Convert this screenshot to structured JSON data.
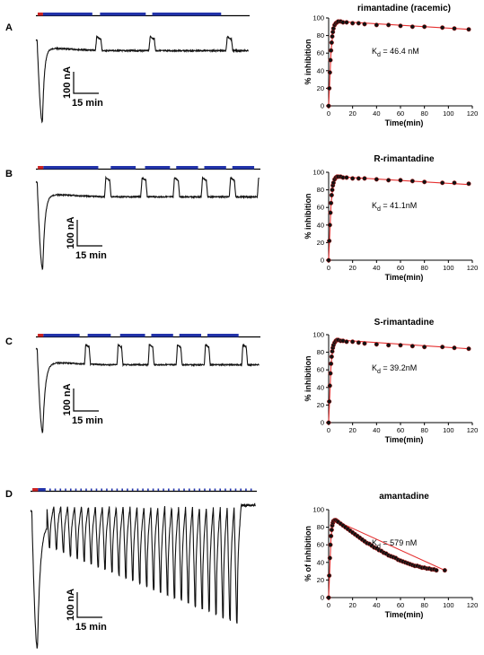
{
  "panels": [
    {
      "letter": "A",
      "scale_current": "100 nA",
      "scale_time": "15 min",
      "bars": [
        {
          "color": "#cc2222",
          "from": 0.3,
          "to": 1.2
        },
        {
          "color": "#2233aa",
          "from": 1.2,
          "to": 9.5
        },
        {
          "color": "#2233aa",
          "from": 10.8,
          "to": 18.5
        },
        {
          "color": "#2233aa",
          "from": 19.6,
          "to": 31.2
        }
      ],
      "trace": {
        "baseline": 0.14,
        "peak": 1.0,
        "drop_start": 0.2,
        "drop_end": 1.1,
        "recover_tau": 2.5,
        "settle": 0.22,
        "drift": 0.03,
        "washouts": [
          10.0,
          19.0,
          32.0
        ],
        "washout_level": 0.1,
        "washout_dur": 0.9
      },
      "kinetics": {
        "peak_time": 8,
        "k_on": 0.55,
        "peak": 96,
        "end_time": 117,
        "end_value": 87
      }
    },
    {
      "letter": "B",
      "scale_current": "100 nA",
      "scale_time": "15 min",
      "bars": [
        {
          "color": "#cc2222",
          "from": 0.3,
          "to": 1.2
        },
        {
          "color": "#2233aa",
          "from": 1.2,
          "to": 10.0
        },
        {
          "color": "#2233aa",
          "from": 12.0,
          "to": 16.0
        },
        {
          "color": "#2233aa",
          "from": 17.5,
          "to": 21.5
        },
        {
          "color": "#2233aa",
          "from": 22.5,
          "to": 26.0
        },
        {
          "color": "#2233aa",
          "from": 27.0,
          "to": 30.5
        },
        {
          "color": "#2233aa",
          "from": 31.5,
          "to": 35.0
        }
      ],
      "trace": {
        "baseline": 0.05,
        "peak": 1.0,
        "drop_start": 0.2,
        "drop_end": 1.1,
        "recover_tau": 2.3,
        "settle": 0.18,
        "drift": 0.03,
        "washouts": [
          11.0,
          16.8,
          22.0,
          26.5,
          31.0,
          35.5
        ],
        "washout_level": 0.0,
        "washout_dur": 0.8
      },
      "kinetics": {
        "peak_time": 7,
        "k_on": 0.6,
        "peak": 95,
        "end_time": 117,
        "end_value": 87
      }
    },
    {
      "letter": "C",
      "scale_current": "100 nA",
      "scale_time": "15 min",
      "bars": [
        {
          "color": "#cc2222",
          "from": 0.3,
          "to": 1.2
        },
        {
          "color": "#2233aa",
          "from": 1.2,
          "to": 7.0
        },
        {
          "color": "#2233aa",
          "from": 8.3,
          "to": 12.0
        },
        {
          "color": "#2233aa",
          "from": 13.5,
          "to": 17.5
        },
        {
          "color": "#2233aa",
          "from": 18.5,
          "to": 22.0
        },
        {
          "color": "#2233aa",
          "from": 23.0,
          "to": 26.5
        },
        {
          "color": "#2233aa",
          "from": 27.5,
          "to": 32.5
        }
      ],
      "trace": {
        "baseline": 0.05,
        "peak": 1.0,
        "drop_start": 0.2,
        "drop_end": 1.1,
        "recover_tau": 2.0,
        "settle": 0.2,
        "drift": 0.03,
        "washouts": [
          7.8,
          13.0,
          18.0,
          22.5,
          27.0,
          33.0
        ],
        "washout_level": 0.0,
        "washout_dur": 0.7
      },
      "kinetics": {
        "peak_time": 6,
        "k_on": 0.65,
        "peak": 94,
        "end_time": 117,
        "end_value": 84
      }
    },
    {
      "letter": "D",
      "scale_current": "100 nA",
      "scale_time": "15 min",
      "bars": [
        {
          "color": "#cc2222",
          "from": 0.3,
          "to": 1.2
        },
        {
          "color": "#2233aa",
          "from": 1.2,
          "to": 2.4
        }
      ],
      "trace": {
        "baseline": 0.07,
        "peak": 0.98,
        "drop_start": 0.2,
        "drop_end": 1.1,
        "recover_tau": 1.8,
        "settle": 0.15,
        "drift": 0.0,
        "washouts": [],
        "osc_count": 28,
        "osc_start": 2.6,
        "osc_end": 33.5,
        "osc_base_start": 0.3,
        "osc_base_end": 0.82,
        "washout_level": 0.02,
        "washout_dur": 0.4
      },
      "kinetics": {
        "peak_time": 5,
        "k_on": 0.7,
        "peak": 88,
        "end_time": 97,
        "end_value": 31
      }
    }
  ],
  "chart_data": [
    {
      "type": "scatter",
      "title": "rimantadine (racemic)",
      "xlabel": "Time(min)",
      "ylabel": "% inhibition",
      "annotation_main": "K",
      "annotation_sub": "d",
      "annotation_rest": " = 46.4 nM",
      "xlim": [
        0,
        120
      ],
      "ylim": [
        0,
        100
      ],
      "xticks": [
        "0",
        "20",
        "40",
        "60",
        "80",
        "100",
        "120"
      ],
      "yticks": [
        "0",
        "20",
        "40",
        "60",
        "80",
        "100"
      ],
      "x": [
        0,
        0.5,
        1,
        1.5,
        2,
        2.5,
        3,
        3.5,
        4,
        5,
        6,
        7,
        8,
        10,
        12,
        15,
        20,
        25,
        30,
        40,
        50,
        60,
        70,
        80,
        95,
        105,
        117
      ],
      "y": [
        0,
        20,
        38,
        52,
        63,
        72,
        79,
        84,
        88,
        92,
        94,
        95,
        96,
        96,
        95,
        95,
        94,
        94,
        93,
        92,
        92,
        91,
        90,
        90,
        89,
        88,
        87
      ],
      "fit": {
        "x": [
          0,
          2,
          4,
          6,
          8,
          117
        ],
        "y": [
          0,
          63,
          88,
          94,
          96,
          87
        ]
      }
    },
    {
      "type": "scatter",
      "title": "R-rimantadine",
      "xlabel": "Time(min)",
      "ylabel": "% inhibition",
      "annotation_main": "K",
      "annotation_sub": "d",
      "annotation_rest": " = 41.1nM",
      "xlim": [
        0,
        120
      ],
      "ylim": [
        0,
        100
      ],
      "xticks": [
        "0",
        "20",
        "40",
        "60",
        "80",
        "100",
        "120"
      ],
      "yticks": [
        "0",
        "20",
        "40",
        "60",
        "80",
        "100"
      ],
      "x": [
        0,
        0.5,
        1,
        1.5,
        2,
        2.5,
        3,
        3.5,
        4,
        5,
        6,
        7,
        8,
        10,
        12,
        15,
        20,
        25,
        30,
        40,
        50,
        60,
        70,
        80,
        95,
        105,
        117
      ],
      "y": [
        0,
        22,
        40,
        54,
        65,
        74,
        80,
        85,
        88,
        92,
        94,
        95,
        95,
        95,
        94,
        94,
        93,
        93,
        93,
        92,
        91,
        91,
        90,
        89,
        88,
        88,
        87
      ],
      "fit": {
        "x": [
          0,
          2,
          4,
          6,
          8,
          117
        ],
        "y": [
          0,
          65,
          88,
          94,
          95,
          86
        ]
      }
    },
    {
      "type": "scatter",
      "title": "S-rimantadine",
      "xlabel": "Time(min)",
      "ylabel": "% inhibition",
      "annotation_main": "K",
      "annotation_sub": "d",
      "annotation_rest": " = 39.2nM",
      "xlim": [
        0,
        120
      ],
      "ylim": [
        0,
        100
      ],
      "xticks": [
        "0",
        "20",
        "40",
        "60",
        "80",
        "100",
        "120"
      ],
      "yticks": [
        "0",
        "20",
        "40",
        "60",
        "80",
        "100"
      ],
      "x": [
        0,
        0.5,
        1,
        1.5,
        2,
        2.5,
        3,
        3.5,
        4,
        5,
        6,
        7,
        8,
        10,
        12,
        15,
        20,
        25,
        30,
        40,
        50,
        60,
        70,
        80,
        95,
        105,
        117
      ],
      "y": [
        0,
        24,
        42,
        56,
        67,
        75,
        81,
        85,
        88,
        91,
        93,
        94,
        94,
        93,
        93,
        92,
        92,
        91,
        90,
        89,
        88,
        88,
        87,
        86,
        86,
        85,
        84
      ],
      "fit": {
        "x": [
          0,
          2,
          4,
          6,
          8,
          117
        ],
        "y": [
          0,
          67,
          88,
          93,
          94,
          84
        ]
      }
    },
    {
      "type": "scatter",
      "title": "amantadine",
      "xlabel": "Time(min)",
      "ylabel": "% of inhibition",
      "annotation_main": "K",
      "annotation_sub": "d",
      "annotation_rest": " = 579 nM",
      "xlim": [
        0,
        120
      ],
      "ylim": [
        0,
        100
      ],
      "xticks": [
        "0",
        "20",
        "40",
        "60",
        "80",
        "100",
        "120"
      ],
      "yticks": [
        "0",
        "20",
        "40",
        "60",
        "80",
        "100"
      ],
      "x": [
        0,
        0.5,
        1,
        1.5,
        2,
        2.5,
        3,
        3.5,
        4,
        5,
        6,
        7,
        8,
        10,
        12,
        14,
        16,
        18,
        20,
        22,
        24,
        26,
        28,
        30,
        32,
        34,
        36,
        38,
        40,
        42,
        44,
        46,
        48,
        50,
        52,
        54,
        56,
        58,
        60,
        62,
        64,
        66,
        68,
        70,
        72,
        74,
        76,
        78,
        80,
        82,
        84,
        86,
        88,
        90,
        97
      ],
      "y": [
        0,
        25,
        45,
        60,
        70,
        77,
        82,
        85,
        87,
        88,
        88,
        87,
        86,
        84,
        82,
        80,
        78,
        76,
        74,
        72,
        70,
        68,
        66,
        64,
        62,
        61,
        59,
        57,
        56,
        54,
        53,
        51,
        50,
        48,
        47,
        46,
        45,
        43,
        42,
        41,
        40,
        39,
        38,
        37,
        36,
        36,
        35,
        34,
        34,
        33,
        33,
        32,
        32,
        31,
        31
      ],
      "fit": {
        "x": [
          0,
          2,
          4,
          5,
          97
        ],
        "y": [
          0,
          70,
          87,
          88,
          31
        ]
      }
    }
  ]
}
